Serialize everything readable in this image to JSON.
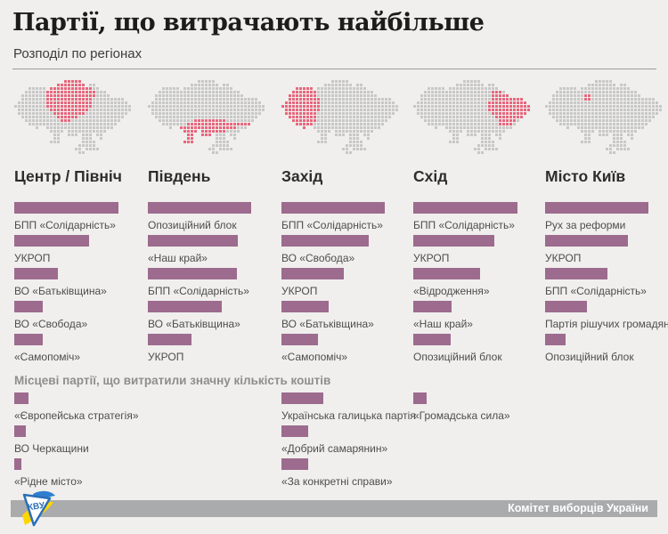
{
  "page": {
    "title": "Партії, що витрачають найбільше",
    "subtitle": "Розподіл по регіонах"
  },
  "colors": {
    "background": "#f0efed",
    "bar": "#9d6b8e",
    "map_dot": "#c8c8c8",
    "map_highlight": "#e8677d",
    "footer_band": "#a9abad",
    "footer_text": "#ffffff"
  },
  "map_grid": [
    "..............xxxxx..............",
    "............xxxxxxxx.xx..........",
    "....xxxxx.xxxxxxxxxxxxxx.........",
    "...xxxxxxxxxxxxxxxxxxxxxxx.......",
    "..xxxxxxxxxxxxxxxxxxxxxxxxx......",
    "..xxxxxxxxxxxxxxxxxxxxxxxxxxxxx..",
    ".xxxxxxxxxxxxxxxxxxxxxxxxxxxxxxx.",
    "xxxxxxxxxxxxxxxxxxxxxxxxxxxxxxxxx",
    ".xxxxxxxxxxxxxxxxxxxxxxxxxxxxxxxx",
    ".xxxxxxxxxxxxxxxxxxxxxxxxxxxxxxx.",
    "..xxxxxxxxxxxxxxxxxxxxxxxxxxxxx..",
    "...xxxxxxxxxxxxxxxxxxxxxxxxxxx...",
    "....xxxxxxxxxxxxxxxxxxxxxxxxx....",
    "......x..xxxxxxxxxxxxxxxxxxx.....",
    "..........xxxx.xxxxxxxxxxx.......",
    "...........xx..xxx.xxx.xx........",
    "...........xx......xxx..x........",
    "..........xxx......xxxx..........",
    "..................xxxxx..........",
    ".................xx.xxxx.........",
    "..................xx............."
  ],
  "columns": [
    {
      "region": "Центр / Північ",
      "map_name": "map-center-north",
      "highlight": [
        [
          0,
          14,
          18
        ],
        [
          1,
          12,
          19
        ],
        [
          2,
          9,
          21
        ],
        [
          3,
          9,
          22
        ],
        [
          4,
          9,
          22
        ],
        [
          5,
          9,
          21
        ],
        [
          6,
          9,
          21
        ],
        [
          7,
          9,
          21
        ],
        [
          8,
          10,
          20
        ],
        [
          9,
          11,
          19
        ],
        [
          10,
          12,
          17
        ],
        [
          11,
          13,
          15
        ]
      ],
      "parties": [
        {
          "name": "БПП «Солідарність»",
          "bar": 117
        },
        {
          "name": "УКРОП",
          "bar": 84
        },
        {
          "name": "ВО «Батьківщина»",
          "bar": 49
        },
        {
          "name": "ВО «Свобода»",
          "bar": 32
        },
        {
          "name": "«Самопоміч»",
          "bar": 32
        }
      ]
    },
    {
      "region": "Південь",
      "map_name": "map-south",
      "highlight": [
        [
          11,
          13,
          21
        ],
        [
          12,
          11,
          28
        ],
        [
          13,
          9,
          24
        ],
        [
          14,
          10,
          21
        ],
        [
          15,
          11,
          17
        ],
        [
          16,
          11,
          12
        ],
        [
          17,
          10,
          12
        ]
      ],
      "parties": [
        {
          "name": "Опозиційний блок",
          "bar": 116
        },
        {
          "name": "«Наш край»",
          "bar": 101
        },
        {
          "name": "БПП «Солідарність»",
          "bar": 100
        },
        {
          "name": "ВО «Батьківщина»",
          "bar": 83
        },
        {
          "name": "УКРОП",
          "bar": 49
        }
      ]
    },
    {
      "region": "Захід",
      "map_name": "map-west",
      "highlight": [
        [
          2,
          4,
          8
        ],
        [
          3,
          3,
          9
        ],
        [
          4,
          2,
          9
        ],
        [
          5,
          2,
          10
        ],
        [
          6,
          1,
          10
        ],
        [
          7,
          0,
          10
        ],
        [
          8,
          1,
          10
        ],
        [
          9,
          1,
          9
        ],
        [
          10,
          2,
          9
        ],
        [
          11,
          3,
          9
        ],
        [
          12,
          4,
          8
        ],
        [
          13,
          6,
          6
        ]
      ],
      "parties": [
        {
          "name": "БПП «Солідарність»",
          "bar": 116
        },
        {
          "name": "ВО «Свобода»",
          "bar": 98
        },
        {
          "name": "УКРОП",
          "bar": 70
        },
        {
          "name": "ВО «Батьківщина»",
          "bar": 53
        },
        {
          "name": "«Самопоміч»",
          "bar": 41
        }
      ]
    },
    {
      "region": "Схід",
      "map_name": "map-east",
      "highlight": [
        [
          3,
          22,
          24
        ],
        [
          4,
          22,
          27
        ],
        [
          5,
          22,
          30
        ],
        [
          6,
          21,
          31
        ],
        [
          7,
          21,
          32
        ],
        [
          8,
          21,
          32
        ],
        [
          9,
          22,
          31
        ],
        [
          10,
          23,
          30
        ],
        [
          11,
          24,
          28
        ],
        [
          12,
          24,
          27
        ]
      ],
      "parties": [
        {
          "name": "БПП «Солідарність»",
          "bar": 117
        },
        {
          "name": "УКРОП",
          "bar": 91
        },
        {
          "name": "«Відродження»",
          "bar": 75
        },
        {
          "name": "«Наш край»",
          "bar": 43
        },
        {
          "name": "Опозиційний блок",
          "bar": 42
        }
      ]
    },
    {
      "region": "Місто Київ",
      "map_name": "map-kyiv-city",
      "highlight": [
        [
          4,
          11,
          12
        ],
        [
          5,
          11,
          12
        ]
      ],
      "parties": [
        {
          "name": "Рух за реформи",
          "bar": 116
        },
        {
          "name": "УКРОП",
          "bar": 93
        },
        {
          "name": "БПП «Солідарність»",
          "bar": 70
        },
        {
          "name": "Партія рішучих громадян",
          "bar": 47
        },
        {
          "name": "Опозиційний блок",
          "bar": 23
        }
      ]
    }
  ],
  "local_section": {
    "heading": "Місцеві партії, що витратили значну кількість коштів",
    "groups": [
      {
        "column_index": 0,
        "parties": [
          {
            "name": "«Європейська стратегія»",
            "bar": 16
          },
          {
            "name": "ВО Черкащини",
            "bar": 13
          },
          {
            "name": "«Рідне місто»",
            "bar": 8
          }
        ]
      },
      {
        "column_index": 2,
        "parties": [
          {
            "name": "Українська галицька партія",
            "bar": 47
          },
          {
            "name": "«Добрий самарянин»",
            "bar": 30
          },
          {
            "name": "«За конкретні справи»",
            "bar": 30
          }
        ]
      },
      {
        "column_index": 3,
        "parties": [
          {
            "name": "«Громадська сила»",
            "bar": 15
          }
        ]
      }
    ]
  },
  "footer": {
    "credit": "Комітет виборців України",
    "logo": "kvu-logo"
  },
  "chart_data": [
    {
      "type": "bar",
      "orientation": "horizontal",
      "title": "Центр / Північ",
      "categories": [
        "БПП «Солідарність»",
        "УКРОП",
        "ВО «Батьківщина»",
        "ВО «Свобода»",
        "«Самопоміч»"
      ],
      "values": [
        117,
        84,
        49,
        32,
        32
      ],
      "value_note": "bar lengths in px; no numeric axis shown",
      "xlabel": "",
      "ylabel": "",
      "grid": false,
      "legend": "none"
    },
    {
      "type": "bar",
      "orientation": "horizontal",
      "title": "Південь",
      "categories": [
        "Опозиційний блок",
        "«Наш край»",
        "БПП «Солідарність»",
        "ВО «Батьківщина»",
        "УКРОП"
      ],
      "values": [
        116,
        101,
        100,
        83,
        49
      ],
      "value_note": "bar lengths in px; no numeric axis shown",
      "xlabel": "",
      "ylabel": "",
      "grid": false,
      "legend": "none"
    },
    {
      "type": "bar",
      "orientation": "horizontal",
      "title": "Захід",
      "categories": [
        "БПП «Солідарність»",
        "ВО «Свобода»",
        "УКРОП",
        "ВО «Батьківщина»",
        "«Самопоміч»"
      ],
      "values": [
        116,
        98,
        70,
        53,
        41
      ],
      "value_note": "bar lengths in px; no numeric axis shown",
      "xlabel": "",
      "ylabel": "",
      "grid": false,
      "legend": "none"
    },
    {
      "type": "bar",
      "orientation": "horizontal",
      "title": "Схід",
      "categories": [
        "БПП «Солідарність»",
        "УКРОП",
        "«Відродження»",
        "«Наш край»",
        "Опозиційний блок"
      ],
      "values": [
        117,
        91,
        75,
        43,
        42
      ],
      "value_note": "bar lengths in px; no numeric axis shown",
      "xlabel": "",
      "ylabel": "",
      "grid": false,
      "legend": "none"
    },
    {
      "type": "bar",
      "orientation": "horizontal",
      "title": "Місто Київ",
      "categories": [
        "Рух за реформи",
        "УКРОП",
        "БПП «Солідарність»",
        "Партія рішучих громадян",
        "Опозиційний блок"
      ],
      "values": [
        116,
        93,
        70,
        47,
        23
      ],
      "value_note": "bar lengths in px; no numeric axis shown",
      "xlabel": "",
      "ylabel": "",
      "grid": false,
      "legend": "none"
    },
    {
      "type": "bar",
      "orientation": "horizontal",
      "title": "Місцеві партії, що витратили значну кількість коштів",
      "categories": [
        "«Європейська стратегія»",
        "ВО Черкащини",
        "«Рідне місто»",
        "Українська галицька партія",
        "«Добрий самарянин»",
        "«За конкретні справи»",
        "«Громадська сила»"
      ],
      "values": [
        16,
        13,
        8,
        47,
        30,
        30,
        15
      ],
      "value_note": "bar lengths in px; no numeric axis shown",
      "xlabel": "",
      "ylabel": "",
      "grid": false,
      "legend": "none"
    }
  ]
}
